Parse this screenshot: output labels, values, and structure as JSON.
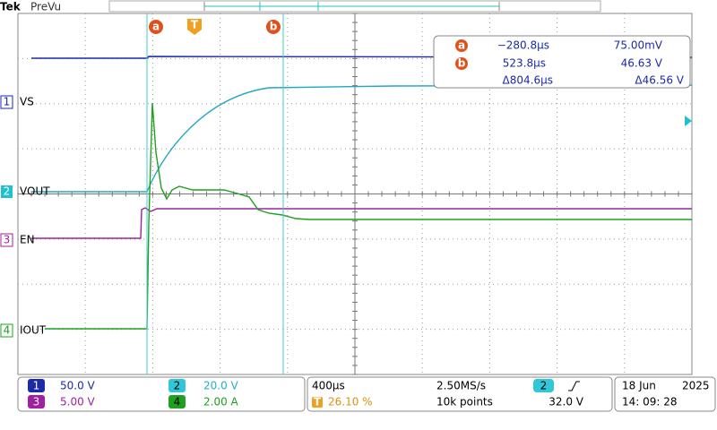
{
  "header": {
    "brand": "Tek",
    "mode": "PreVu"
  },
  "cursor_markers": {
    "a": "a",
    "trigger": "T",
    "b": "b"
  },
  "readout": {
    "rows": [
      {
        "marker": "a",
        "time": "−280.8µs",
        "value": "75.00mV"
      },
      {
        "marker": "b",
        "time": "523.8µs",
        "value": "46.63 V"
      },
      {
        "time": "Δ804.6µs",
        "value": "Δ46.56 V"
      }
    ]
  },
  "channels": [
    {
      "number": "1",
      "label": "VS"
    },
    {
      "number": "2",
      "label": "VOUT"
    },
    {
      "number": "3",
      "label": "EN"
    },
    {
      "number": "4",
      "label": "IOUT"
    }
  ],
  "vertical_settings": [
    {
      "number": "1",
      "scale": "50.0 V"
    },
    {
      "number": "3",
      "scale": "5.00 V"
    },
    {
      "number": "2",
      "scale": "20.0 V"
    },
    {
      "number": "4",
      "scale": "2.00 A"
    }
  ],
  "horizontal": {
    "scale": "400µs",
    "sample_rate": "2.50MS/s",
    "trigger_marker": "T",
    "trigger_position": "26.10 %",
    "record_length": "10k points"
  },
  "trigger": {
    "source": "2",
    "level": "32.0 V"
  },
  "datetime": {
    "date": "18 Jun",
    "year": "2025",
    "time": "14: 09: 28"
  }
}
